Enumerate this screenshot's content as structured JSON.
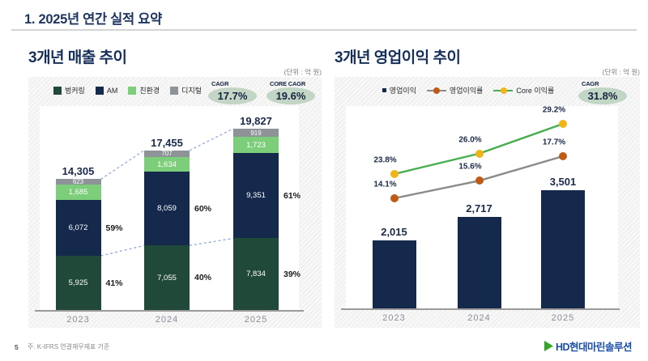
{
  "header": {
    "title": "1. 2025년 연간 실적 요약"
  },
  "footer": {
    "page_number": "5",
    "note": "주. K-IFRS 연결재무제표 기준",
    "logo_text": "HD현대마린솔루션",
    "logo_triangle_color": "#35A32C"
  },
  "chart_data": [
    {
      "type": "bar",
      "subtype": "stacked",
      "title": "3개년 매출 추이",
      "unit_label": "(단위 : 억 원)",
      "categories": [
        "2023",
        "2024",
        "2025"
      ],
      "series": [
        {
          "name": "벙커링",
          "color": "#21493A",
          "values": [
            5925,
            7055,
            7834
          ],
          "value_labels": [
            "5,925",
            "7,055",
            "7,834"
          ]
        },
        {
          "name": "AM",
          "color": "#15294D",
          "values": [
            6072,
            8059,
            9351
          ],
          "value_labels": [
            "6,072",
            "8,059",
            "9,351"
          ]
        },
        {
          "name": "친환경",
          "color": "#7DCE7A",
          "values": [
            1685,
            1634,
            1723
          ],
          "value_labels": [
            "1,685",
            "1,634",
            "1,723"
          ]
        },
        {
          "name": "디지털",
          "color": "#8E9397",
          "values": [
            623,
            707,
            919
          ],
          "value_labels": [
            "623",
            "707",
            "919"
          ]
        }
      ],
      "totals": [
        14305,
        17455,
        19827
      ],
      "total_labels": [
        "14,305",
        "17,455",
        "19,827"
      ],
      "upper_share_labels": [
        "59%",
        "60%",
        "61%"
      ],
      "lower_share_labels": [
        "41%",
        "40%",
        "39%"
      ],
      "badges": [
        {
          "label": "CAGR",
          "value": "17.7%"
        },
        {
          "label": "CORE CAGR",
          "value": "19.6%"
        }
      ],
      "legend_position": "top",
      "connector_color": "#93A7DD"
    },
    {
      "type": "bar",
      "subtype": "bar-with-lines",
      "title": "3개년 영업이익 추이",
      "unit_label": "(단위 : 억 원)",
      "categories": [
        "2023",
        "2024",
        "2025"
      ],
      "bar_series": {
        "name": "영업이익",
        "color": "#15294D",
        "values": [
          2015,
          2717,
          3501
        ],
        "value_labels": [
          "2,015",
          "2,717",
          "3,501"
        ]
      },
      "line_series": [
        {
          "name": "영업이익률",
          "line_color": "#8A8A8A",
          "marker_color": "#BE5A15",
          "values": [
            14.1,
            15.6,
            17.7
          ],
          "labels": [
            "14.1%",
            "15.6%",
            "17.7%"
          ]
        },
        {
          "name": "Core 이익률",
          "line_color": "#47AD4F",
          "marker_color": "#F0B417",
          "values": [
            23.8,
            26.0,
            29.2
          ],
          "labels": [
            "23.8%",
            "26.0%",
            "29.2%"
          ]
        }
      ],
      "badges": [
        {
          "label": "CAGR",
          "value": "31.8%"
        }
      ],
      "legend_position": "top"
    }
  ]
}
